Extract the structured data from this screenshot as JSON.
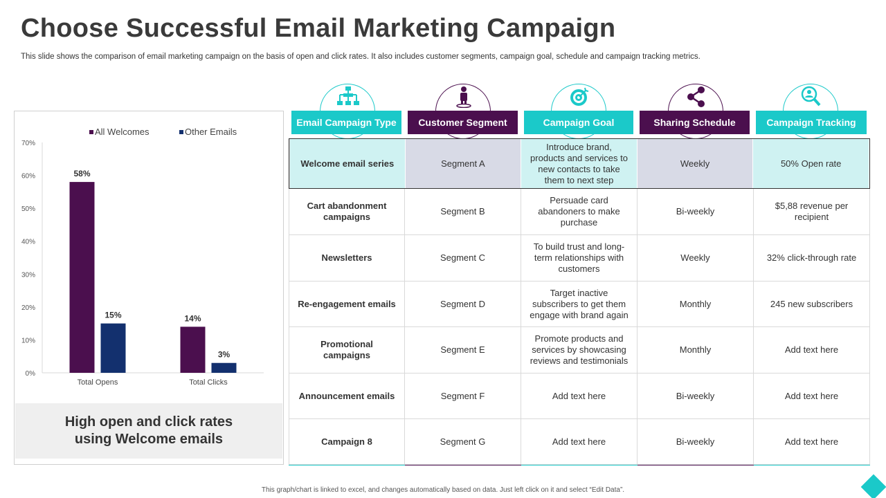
{
  "title": "Choose Successful Email Marketing Campaign",
  "subtitle": "This slide shows the comparison of email marketing campaign on the basis of open and click rates. It also includes customer segments, campaign goal, schedule and campaign tracking metrics.",
  "chart_data": {
    "type": "bar",
    "categories": [
      "Total Opens",
      "Total Clicks"
    ],
    "series": [
      {
        "name": "All Welcomes",
        "values": [
          58,
          14
        ],
        "labels": [
          "58%",
          "14%"
        ],
        "color": "#4b0f4e"
      },
      {
        "name": "Other Emails",
        "values": [
          15,
          3
        ],
        "labels": [
          "15%",
          "3%"
        ],
        "color": "#13306e"
      }
    ],
    "ylim": [
      0,
      70
    ],
    "yticks": [
      0,
      10,
      20,
      30,
      40,
      50,
      60,
      70
    ],
    "ytick_labels": [
      "0%",
      "10%",
      "20%",
      "30%",
      "40%",
      "50%",
      "60%",
      "70%"
    ],
    "legend_position": "top",
    "grid": false
  },
  "chart_caption": "High open and click rates\nusing Welcome emails",
  "colors": {
    "teal": "#1bc9c9",
    "purple": "#4b0f4e"
  },
  "table": {
    "headers": [
      {
        "label": "Email Campaign Type",
        "icon": "hierarchy-icon",
        "color": "#1bc9c9"
      },
      {
        "label": "Customer  Segment",
        "icon": "person-icon",
        "color": "#4b0f4e"
      },
      {
        "label": "Campaign Goal",
        "icon": "target-icon",
        "color": "#1bc9c9"
      },
      {
        "label": "Sharing Schedule",
        "icon": "share-icon",
        "color": "#4b0f4e"
      },
      {
        "label": "Campaign Tracking",
        "icon": "search-person-icon",
        "color": "#1bc9c9"
      }
    ],
    "rows": [
      [
        "Welcome email series",
        "Segment A",
        "Introduce brand, products and services to new contacts to take them to next step",
        "Weekly",
        "50% Open rate"
      ],
      [
        "Cart abandonment campaigns",
        "Segment B",
        "Persuade card abandoners to make purchase",
        "Bi-weekly",
        "$5,88 revenue  per recipient"
      ],
      [
        "Newsletters",
        "Segment C",
        "To build trust and long-term relationships with customers",
        "Weekly",
        "32% click-through rate"
      ],
      [
        "Re-engagement emails",
        "Segment D",
        "Target  inactive subscribers to get them engage with brand again",
        "Monthly",
        "245 new subscribers"
      ],
      [
        "Promotional campaigns",
        "Segment E",
        "Promote products and services by showcasing reviews  and testimonials",
        "Monthly",
        "Add text here"
      ],
      [
        "Announcement emails",
        "Segment F",
        "Add text here",
        "Bi-weekly",
        "Add text here"
      ],
      [
        "Campaign 8",
        "Segment G",
        "Add text here",
        "Bi-weekly",
        "Add text here"
      ]
    ]
  },
  "footer": "This graph/chart is linked to excel, and changes automatically based on data. Just left click on it and select “Edit Data”."
}
